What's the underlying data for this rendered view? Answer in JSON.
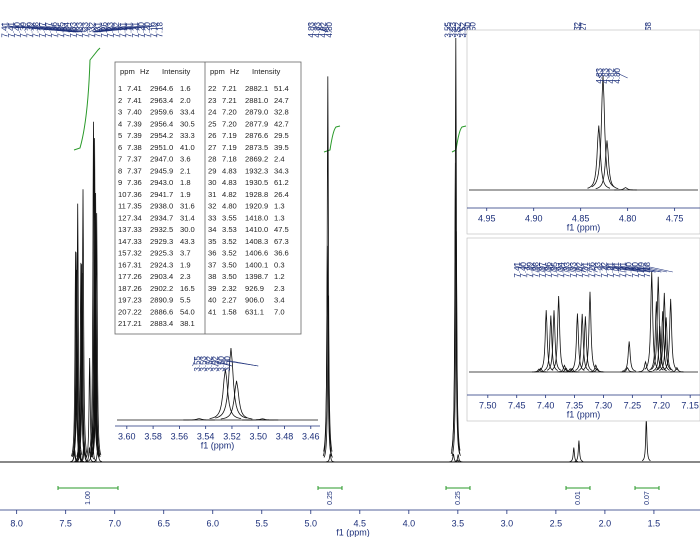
{
  "chart_data": {
    "type": "nmr",
    "xlabel": "f1 (ppm)",
    "xlim": [
      8.17,
      1.03
    ],
    "xticks": [
      {
        "value": 8,
        "label": "8.0"
      },
      {
        "value": 7.5,
        "label": "7.5"
      },
      {
        "value": 7,
        "label": "7.0"
      },
      {
        "value": 6.5,
        "label": "6.5"
      },
      {
        "value": 6,
        "label": "6.0"
      },
      {
        "value": 5.5,
        "label": "5.5"
      },
      {
        "value": 5,
        "label": "5.0"
      },
      {
        "value": 4.5,
        "label": "4.5"
      },
      {
        "value": 4,
        "label": "4.0"
      },
      {
        "value": 3.5,
        "label": "3.5"
      },
      {
        "value": 3,
        "label": "3.0"
      },
      {
        "value": 2.5,
        "label": "2.5"
      },
      {
        "value": 2,
        "label": "2.0"
      },
      {
        "value": 1.5,
        "label": "1.5"
      }
    ],
    "peak_labels": [
      [
        "7.41",
        "7.41",
        "7.40",
        "7.39",
        "7.39",
        "7.38",
        "7.37",
        "7.37",
        "7.36",
        "7.35",
        "7.34",
        "7.33",
        "7.33",
        "7.33",
        "7.32",
        "7.31",
        "7.26",
        "7.23",
        "7.22",
        "7.21",
        "7.21",
        "7.21",
        "7.20",
        "7.20",
        "7.19",
        "7.18"
      ],
      [
        "4.83",
        "4.83",
        "4.82",
        "4.80"
      ],
      [
        "3.55",
        "3.53",
        "3.52",
        "3.52",
        "3.50",
        "3.50"
      ],
      [
        "2.32",
        "2.27"
      ],
      [
        "1.58"
      ]
    ],
    "integrals": [
      "1.00",
      "0.25",
      "0.25",
      "0.01",
      "0.07"
    ],
    "peak_table": {
      "columns": [
        "ppm",
        "Hz",
        "Intensity"
      ],
      "rows": [
        [
          "1",
          "7.41",
          "2964.6",
          "1.6"
        ],
        [
          "2",
          "7.41",
          "2963.4",
          "2.0"
        ],
        [
          "3",
          "7.40",
          "2959.6",
          "33.4"
        ],
        [
          "4",
          "7.39",
          "2956.4",
          "30.5"
        ],
        [
          "5",
          "7.39",
          "2954.2",
          "33.3"
        ],
        [
          "6",
          "7.38",
          "2951.0",
          "41.0"
        ],
        [
          "7",
          "7.37",
          "2947.0",
          "3.6"
        ],
        [
          "8",
          "7.37",
          "2945.9",
          "2.1"
        ],
        [
          "9",
          "7.36",
          "2943.0",
          "1.8"
        ],
        [
          "10",
          "7.36",
          "2941.7",
          "1.9"
        ],
        [
          "11",
          "7.35",
          "2938.0",
          "31.6"
        ],
        [
          "12",
          "7.34",
          "2934.7",
          "31.4"
        ],
        [
          "13",
          "7.33",
          "2932.5",
          "30.0"
        ],
        [
          "14",
          "7.33",
          "2929.3",
          "43.3"
        ],
        [
          "15",
          "7.32",
          "2925.3",
          "3.7"
        ],
        [
          "16",
          "7.31",
          "2924.3",
          "1.9"
        ],
        [
          "17",
          "7.26",
          "2903.4",
          "2.3"
        ],
        [
          "18",
          "7.26",
          "2902.2",
          "16.5"
        ],
        [
          "19",
          "7.23",
          "2890.9",
          "5.5"
        ],
        [
          "20",
          "7.22",
          "2886.6",
          "54.0"
        ],
        [
          "21",
          "7.21",
          "2883.4",
          "38.1"
        ],
        [
          "22",
          "7.21",
          "2882.1",
          "51.4"
        ],
        [
          "23",
          "7.21",
          "2881.0",
          "24.7"
        ],
        [
          "24",
          "7.20",
          "2879.0",
          "32.8"
        ],
        [
          "25",
          "7.20",
          "2877.9",
          "42.7"
        ],
        [
          "26",
          "7.19",
          "2876.6",
          "29.5"
        ],
        [
          "27",
          "7.19",
          "2873.5",
          "39.5"
        ],
        [
          "28",
          "7.18",
          "2869.2",
          "2.4"
        ],
        [
          "29",
          "4.83",
          "1932.3",
          "34.3"
        ],
        [
          "30",
          "4.83",
          "1930.5",
          "61.2"
        ],
        [
          "31",
          "4.82",
          "1928.8",
          "26.4"
        ],
        [
          "32",
          "4.80",
          "1920.9",
          "1.3"
        ],
        [
          "33",
          "3.55",
          "1418.0",
          "1.3"
        ],
        [
          "34",
          "3.53",
          "1410.0",
          "47.5"
        ],
        [
          "35",
          "3.52",
          "1408.3",
          "67.3"
        ],
        [
          "36",
          "3.52",
          "1406.6",
          "36.6"
        ],
        [
          "37",
          "3.50",
          "1400.1",
          "0.3"
        ],
        [
          "38",
          "3.50",
          "1398.7",
          "1.2"
        ],
        [
          "39",
          "2.32",
          "926.9",
          "2.3"
        ],
        [
          "40",
          "2.27",
          "906.0",
          "3.4"
        ],
        [
          "41",
          "1.58",
          "631.1",
          "7.0"
        ]
      ]
    },
    "insets": [
      {
        "xlim": [
          3.609,
          3.453
        ],
        "xlabel": "f1 (ppm)",
        "xticks": [
          {
            "value": 3.6,
            "label": "3.60"
          },
          {
            "value": 3.58,
            "label": "3.58"
          },
          {
            "value": 3.56,
            "label": "3.56"
          },
          {
            "value": 3.54,
            "label": "3.54"
          },
          {
            "value": 3.52,
            "label": "3.52"
          },
          {
            "value": 3.5,
            "label": "3.50"
          },
          {
            "value": 3.48,
            "label": "3.48"
          },
          {
            "value": 3.46,
            "label": "3.46"
          }
        ],
        "peak_labels": [
          "3.55",
          "3.53",
          "3.52",
          "3.52",
          "3.50",
          "3.50"
        ]
      },
      {
        "xlim": [
          4.971,
          4.723
        ],
        "xlabel": "f1 (ppm)",
        "xticks": [
          {
            "value": 4.95,
            "label": "4.95"
          },
          {
            "value": 4.9,
            "label": "4.90"
          },
          {
            "value": 4.85,
            "label": "4.85"
          },
          {
            "value": 4.8,
            "label": "4.80"
          },
          {
            "value": 4.75,
            "label": "4.75"
          }
        ],
        "peak_labels": [
          "4.83",
          "4.83",
          "4.82",
          "4.80"
        ]
      },
      {
        "xlim": [
          7.536,
          7.133
        ],
        "xlabel": "f1 (ppm)",
        "xticks": [
          {
            "value": 7.5,
            "label": "7.50"
          },
          {
            "value": 7.45,
            "label": "7.45"
          },
          {
            "value": 7.4,
            "label": "7.40"
          },
          {
            "value": 7.35,
            "label": "7.35"
          },
          {
            "value": 7.3,
            "label": "7.30"
          },
          {
            "value": 7.25,
            "label": "7.25"
          },
          {
            "value": 7.2,
            "label": "7.20"
          },
          {
            "value": 7.15,
            "label": "7.15"
          }
        ],
        "peak_labels": [
          "7.41",
          "7.40",
          "7.39",
          "7.38",
          "7.37",
          "7.36",
          "7.35",
          "7.34",
          "7.33",
          "7.33",
          "7.32",
          "7.31",
          "7.26",
          "7.23",
          "7.22",
          "7.21",
          "7.21",
          "7.21",
          "7.20",
          "7.20",
          "7.19",
          "7.18"
        ]
      }
    ]
  }
}
